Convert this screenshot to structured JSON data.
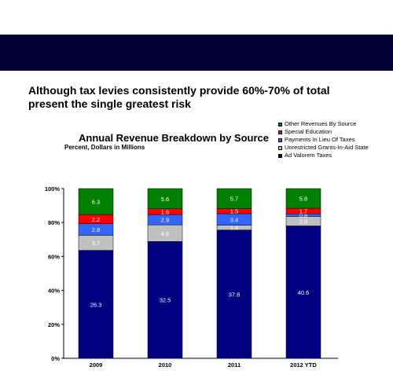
{
  "headline": "Although tax levies consistently provide 60%-70% of total\npresent the single greatest risk",
  "colors": {
    "header_bar": "#000033"
  },
  "chart_data": {
    "type": "bar",
    "stacked": true,
    "title": "Annual Revenue Breakdown by Source",
    "subtitle": "Percent, Dollars in Millions",
    "categories": [
      "2009",
      "2010",
      "2011",
      "2012 YTD"
    ],
    "yticks": [
      "0%",
      "20%",
      "40%",
      "60%",
      "80%",
      "100%"
    ],
    "ylim": [
      0,
      100
    ],
    "legend_position": "top-right",
    "series": [
      {
        "name": "Ad Valorem Taxes",
        "color": "#000080",
        "label_color": "#ffffff",
        "percent": [
          63.6,
          68.8,
          75.6,
          78.0
        ],
        "labels": [
          "26.3",
          "32.5",
          "37.8",
          "40.6"
        ]
      },
      {
        "name": "Unrestricted Grants-In-Aid State",
        "color": "#c0c0c0",
        "label_color": "#ffffff",
        "percent": [
          8.9,
          9.8,
          2.8,
          5.6
        ],
        "labels": [
          "3.7",
          "4.6",
          "1.4",
          "2.9"
        ]
      },
      {
        "name": "Payments In Lieu Of Taxes",
        "color": "#3366ff",
        "label_color": "#ffffff",
        "percent": [
          6.8,
          6.1,
          6.8,
          1.5
        ],
        "labels": [
          "2.8",
          "2.9",
          "3.4",
          "0.8"
        ]
      },
      {
        "name": "Special Education",
        "color": "#ff0000",
        "label_color": "#ffffff",
        "percent": [
          5.4,
          3.4,
          3.0,
          3.3
        ],
        "labels": [
          "2.2",
          "1.6",
          "1.5",
          "1.7"
        ]
      },
      {
        "name": "Other Revenues By Source",
        "color": "#008000",
        "label_color": "#ffffff",
        "percent": [
          15.3,
          11.9,
          11.8,
          11.6
        ],
        "labels": [
          "6.3",
          "5.6",
          "5.7",
          "5.8"
        ]
      }
    ],
    "legend_order": [
      "Other Revenues By Source",
      "Special Education",
      "Payments In Lieu Of Taxes",
      "Unrestricted Grants-In-Aid State",
      "Ad Valorem Taxes"
    ]
  }
}
